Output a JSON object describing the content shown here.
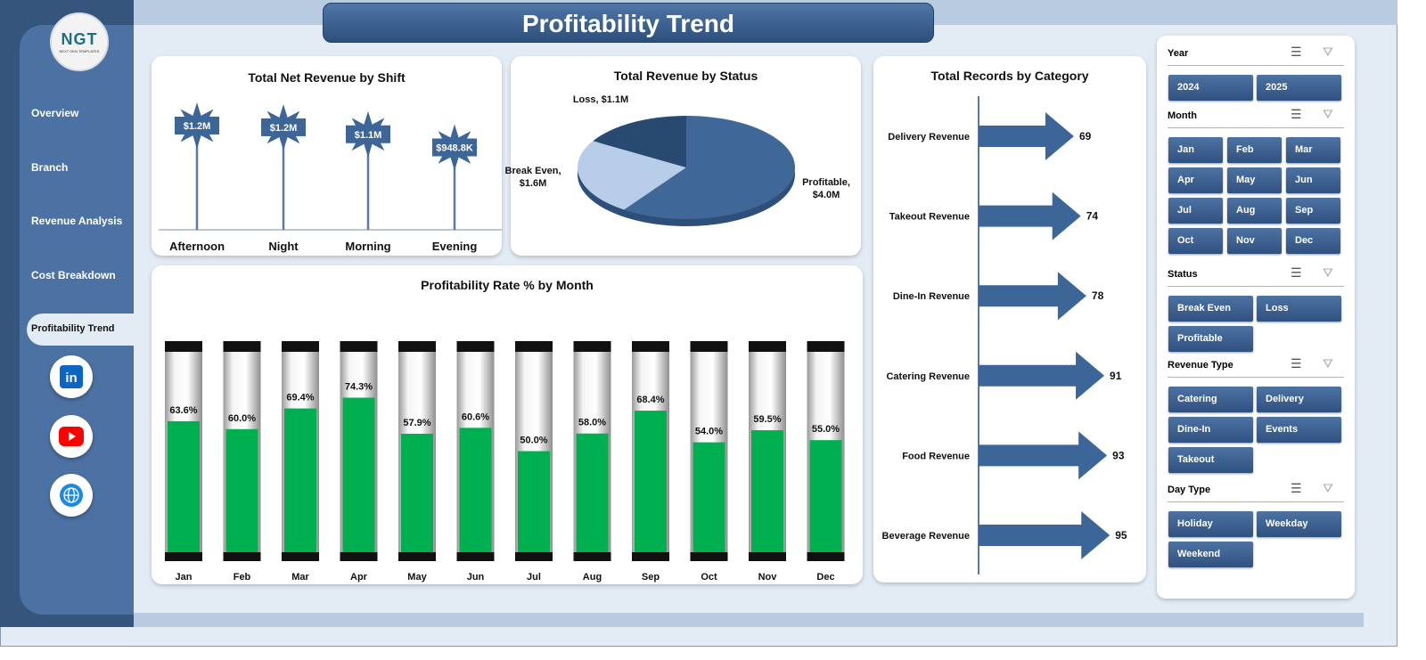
{
  "title": "Profitability Trend",
  "logo": {
    "text": "NGT",
    "subtitle": "NEXT GEN TEMPLATES"
  },
  "sidebar": {
    "items": [
      {
        "label": "Overview"
      },
      {
        "label": "Branch"
      },
      {
        "label": "Revenue Analysis"
      },
      {
        "label": "Cost Breakdown"
      },
      {
        "label": "Profitability  Trend",
        "active": true
      }
    ],
    "social": [
      "linkedin-icon",
      "youtube-icon",
      "globe-icon"
    ]
  },
  "colors": {
    "bar_fill": "#00b050",
    "primary": "#3d6698"
  },
  "chart_data": [
    {
      "type": "lollipop",
      "title": "Total Net Revenue  by Shift",
      "categories": [
        "Afternoon",
        "Night",
        "Morning",
        "Evening"
      ],
      "values": [
        1200000,
        1180000,
        1100000,
        948800
      ],
      "labels": [
        "$1.2M",
        "$1.2M",
        "$1.1M",
        "$948.8K"
      ]
    },
    {
      "type": "pie",
      "title": "Total Revenue by Status",
      "categories": [
        "Profitable",
        "Break Even",
        "Loss"
      ],
      "values": [
        4.0,
        1.6,
        1.1
      ],
      "labels": [
        "Profitable, $4.0M",
        "Break Even, $1.6M",
        "Loss, $1.1M"
      ],
      "colors": [
        "#3f6899",
        "#b8cde8",
        "#294a70"
      ]
    },
    {
      "type": "bar",
      "title": "Total Records by Category",
      "orientation": "horizontal",
      "categories": [
        "Delivery Revenue",
        "Takeout Revenue",
        "Dine-In Revenue",
        "Catering Revenue",
        "Food Revenue",
        "Beverage Revenue"
      ],
      "values": [
        69,
        74,
        78,
        91,
        93,
        95
      ]
    },
    {
      "type": "bar",
      "title": "Profitability Rate % by Month",
      "categories": [
        "Jan",
        "Feb",
        "Mar",
        "Apr",
        "May",
        "Jun",
        "Jul",
        "Aug",
        "Sep",
        "Oct",
        "Nov",
        "Dec"
      ],
      "values": [
        63.6,
        60.0,
        69.4,
        74.3,
        57.9,
        60.6,
        50.0,
        58.0,
        68.4,
        54.0,
        59.5,
        55.0
      ],
      "labels": [
        "63.6%",
        "60.0%",
        "69.4%",
        "74.3%",
        "57.9%",
        "60.6%",
        "50.0%",
        "58.0%",
        "68.4%",
        "54.0%",
        "59.5%",
        "55.0%"
      ],
      "ylim": [
        0,
        100
      ]
    }
  ],
  "slicers": [
    {
      "title": "Year",
      "items": [
        "2024",
        "2025"
      ]
    },
    {
      "title": "Month",
      "items": [
        "Jan",
        "Feb",
        "Mar",
        "Apr",
        "May",
        "Jun",
        "Jul",
        "Aug",
        "Sep",
        "Oct",
        "Nov",
        "Dec"
      ]
    },
    {
      "title": "Status",
      "items": [
        "Break Even",
        "Loss",
        "Profitable"
      ]
    },
    {
      "title": "Revenue Type",
      "items": [
        "Catering",
        "Delivery",
        "Dine-In",
        "Events",
        "Takeout"
      ]
    },
    {
      "title": "Day Type",
      "items": [
        "Holiday",
        "Weekday",
        "Weekend"
      ]
    }
  ]
}
